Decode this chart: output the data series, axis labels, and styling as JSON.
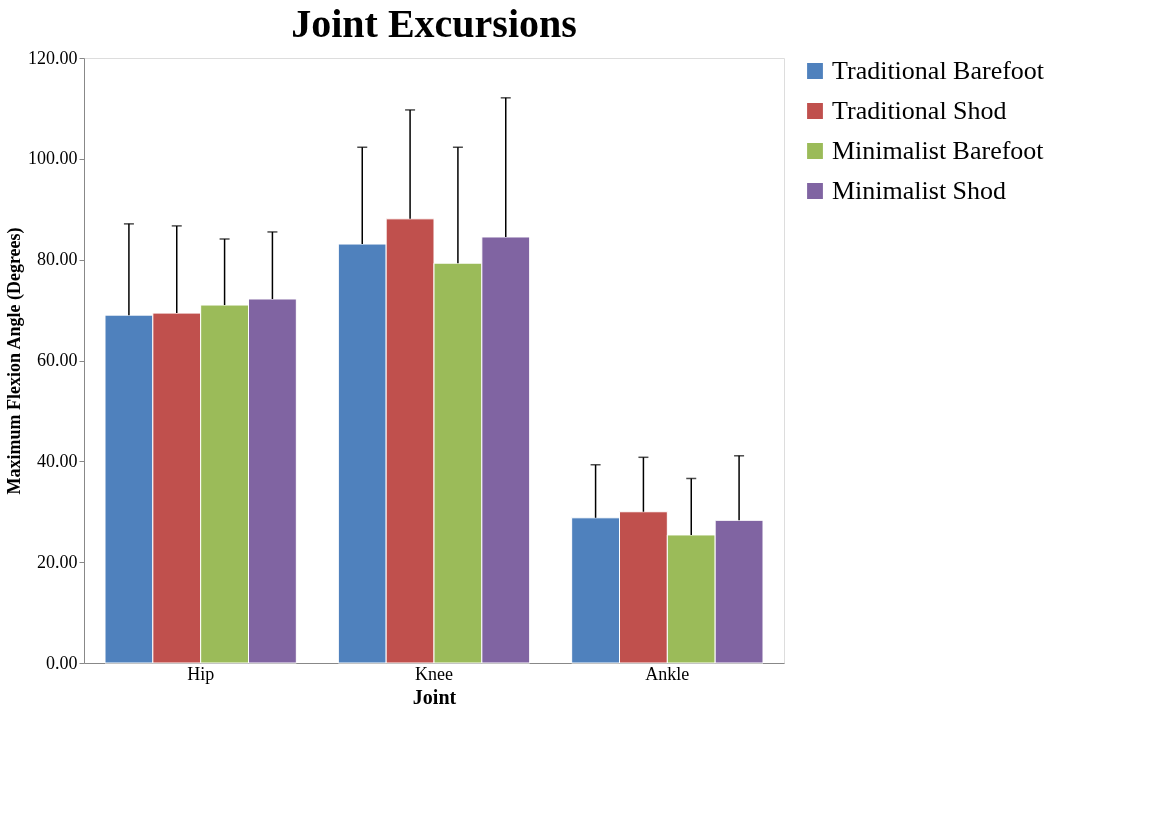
{
  "chart_data": {
    "type": "bar",
    "title": "Joint Excursions",
    "xlabel": "Joint",
    "ylabel": "Maximum Flexion Angle (Degrees)",
    "categories": [
      "Hip",
      "Knee",
      "Ankle"
    ],
    "series": [
      {
        "name": "Traditional Barefoot",
        "color": "#4f81bd",
        "values": [
          69.0,
          83.1,
          28.8
        ],
        "errors": [
          [
            69.0,
            87.1
          ],
          [
            83.1,
            102.3
          ],
          [
            28.8,
            39.3
          ]
        ]
      },
      {
        "name": "Traditional Shod",
        "color": "#c0504d",
        "values": [
          69.4,
          88.1,
          30.0
        ],
        "errors": [
          [
            69.4,
            86.7
          ],
          [
            88.1,
            109.7
          ],
          [
            30.0,
            40.8
          ]
        ]
      },
      {
        "name": "Minimalist Barefoot",
        "color": "#9bbb59",
        "values": [
          71.0,
          79.3,
          25.4
        ],
        "errors": [
          [
            71.0,
            84.1
          ],
          [
            79.3,
            102.3
          ],
          [
            25.4,
            36.6
          ]
        ]
      },
      {
        "name": "Minimalist Shod",
        "color": "#8064a2",
        "values": [
          72.2,
          84.5,
          28.3
        ],
        "errors": [
          [
            72.2,
            85.5
          ],
          [
            84.5,
            112.1
          ],
          [
            28.3,
            41.1
          ]
        ]
      }
    ],
    "ylim": [
      0,
      120
    ],
    "yticks": [
      {
        "value": 0,
        "label": "0.00"
      },
      {
        "value": 20,
        "label": "20.00"
      },
      {
        "value": 40,
        "label": "40.00"
      },
      {
        "value": 60,
        "label": "60.00"
      },
      {
        "value": 80,
        "label": "80.00"
      },
      {
        "value": 100,
        "label": "100.00"
      },
      {
        "value": 120,
        "label": "120.00"
      }
    ],
    "grid": false,
    "legend": "right"
  }
}
